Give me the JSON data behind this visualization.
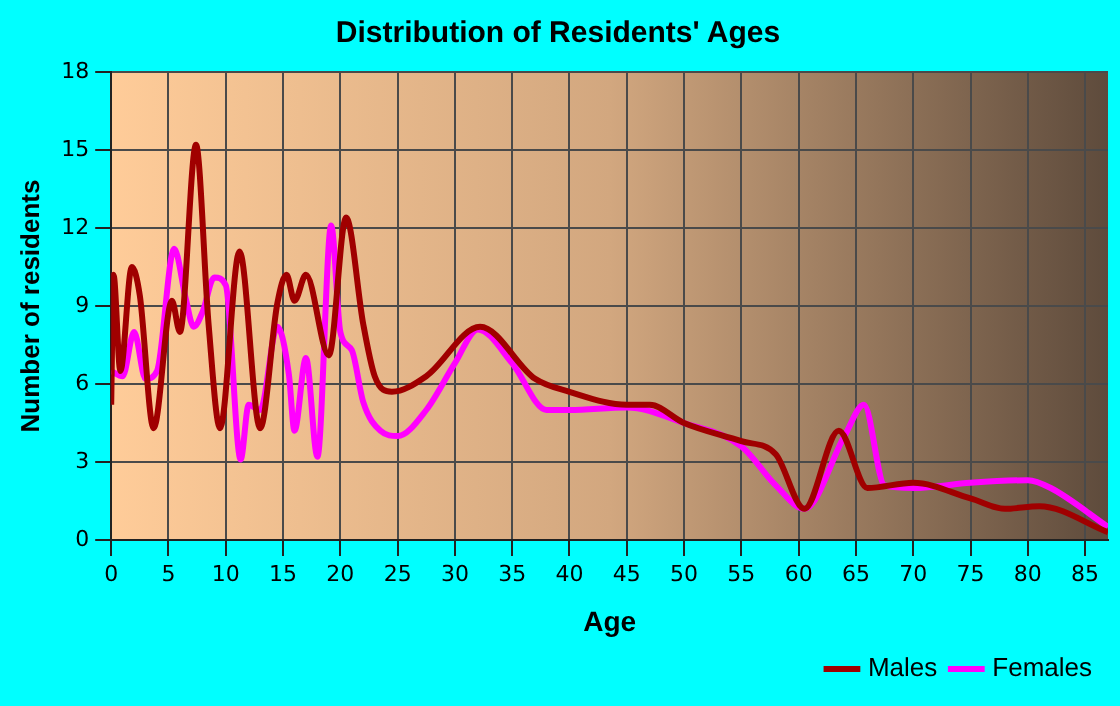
{
  "chart_data": {
    "type": "line",
    "title": "Distribution of Residents' Ages",
    "xlabel": "Age",
    "ylabel": "Number of residents",
    "xlim": [
      0,
      87
    ],
    "xticks": [
      0,
      5,
      10,
      15,
      20,
      25,
      30,
      35,
      40,
      45,
      50,
      55,
      60,
      65,
      70,
      75,
      80,
      85
    ],
    "ylim": [
      0,
      18
    ],
    "yticks": [
      0,
      3,
      6,
      9,
      12,
      15,
      18
    ],
    "grid": true,
    "legend": "bottom right",
    "marker": "none",
    "line_style": "solid",
    "series": [
      {
        "name": "Males",
        "color": "#a00000",
        "x": [
          0,
          0.2,
          0.8,
          1.8,
          2.5,
          3.7,
          5.3,
          6,
          7.4,
          8.5,
          9.5,
          11.2,
          13,
          14.5,
          15.3,
          16,
          17,
          19,
          20.5,
          22,
          23,
          24.5,
          27.5,
          32.2,
          37,
          40,
          45,
          47,
          50,
          55,
          58,
          60.5,
          63.5,
          66,
          70,
          75,
          78,
          81,
          87
        ],
        "values": [
          5.2,
          10.2,
          6.5,
          10.5,
          9.4,
          4.3,
          9.2,
          8,
          15.2,
          8.3,
          4.3,
          11.1,
          4.3,
          9.1,
          10.2,
          9.2,
          10.2,
          7.1,
          12.4,
          8.3,
          6.3,
          5.7,
          6.3,
          8.2,
          6.2,
          5.7,
          5.2,
          5.2,
          4.5,
          3.8,
          3.3,
          1.2,
          4.2,
          2,
          2.2,
          1.6,
          1.2,
          1.3,
          0.3
        ]
      },
      {
        "name": "Females",
        "color": "#ff00ff",
        "x": [
          0,
          1,
          2,
          3,
          4,
          5.5,
          6.5,
          7.2,
          8,
          9,
          10,
          11.3,
          12,
          13,
          14.5,
          15.5,
          16,
          17,
          18,
          19.2,
          20,
          21,
          22,
          23.5,
          25,
          27.5,
          30,
          32,
          35,
          38,
          40,
          45,
          50,
          55,
          58,
          60.5,
          64,
          65.7,
          67.5,
          70,
          75,
          80,
          82,
          87
        ],
        "values": [
          6.5,
          6.3,
          8,
          6.2,
          6.5,
          11.2,
          9.3,
          8.2,
          8.8,
          10.1,
          9.8,
          3.1,
          5.2,
          5,
          8.2,
          6.4,
          4.2,
          7,
          3.2,
          12.1,
          8,
          7.3,
          5.3,
          4.2,
          4,
          5,
          6.8,
          8.1,
          6.8,
          5,
          5,
          5.1,
          4.5,
          3.6,
          2.1,
          1.2,
          4,
          5.2,
          2.1,
          2,
          2.2,
          2.3,
          2,
          0.5
        ]
      }
    ]
  }
}
